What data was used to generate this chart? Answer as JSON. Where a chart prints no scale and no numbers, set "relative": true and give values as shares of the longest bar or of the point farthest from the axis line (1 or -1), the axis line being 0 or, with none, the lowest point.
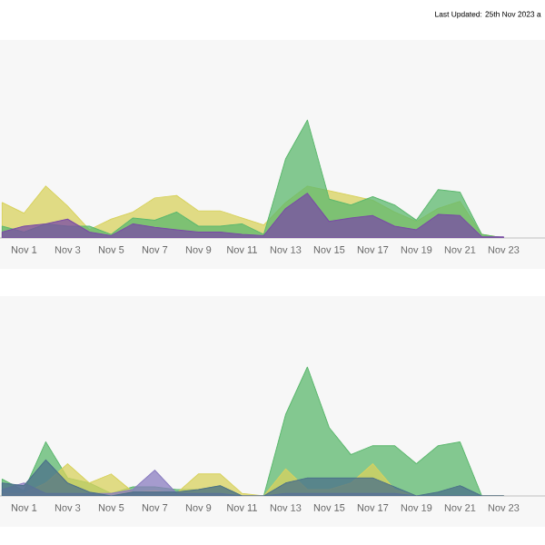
{
  "chart_data": [
    {
      "type": "area",
      "relative": true,
      "annotations": [
        "Last Updated: 25th Nov 2023 a"
      ],
      "categories": [
        null,
        "Nov 1",
        null,
        "Nov 3",
        null,
        "Nov 5",
        null,
        "Nov 7",
        null,
        "Nov 9",
        null,
        "Nov 11",
        null,
        "Nov 13",
        null,
        "Nov 15",
        null,
        "Nov 17",
        null,
        "Nov 19",
        null,
        "Nov 21",
        null,
        "Nov 23"
      ],
      "series": [
        {
          "color": "#d8d25e",
          "values": [
            0.3,
            0.21,
            0.44,
            0.27,
            0.07,
            0.16,
            0.22,
            0.34,
            0.36,
            0.23,
            0.23,
            0.17,
            0.11,
            0.3,
            0.44,
            0.4,
            0.36,
            0.32,
            0.22,
            0.14,
            0.25,
            0.31,
            0.03,
            0
          ]
        },
        {
          "color": "#5cb86e",
          "values": [
            0.1,
            0.05,
            0.12,
            0.1,
            0.1,
            0.03,
            0.17,
            0.15,
            0.22,
            0.1,
            0.1,
            0.12,
            0.03,
            0.67,
            1.0,
            0.33,
            0.28,
            0.35,
            0.28,
            0.15,
            0.41,
            0.39,
            0.03,
            0
          ]
        },
        {
          "color": "#7a4aa6",
          "values": [
            0.05,
            0.1,
            0.12,
            0.16,
            0.05,
            0.02,
            0.12,
            0.09,
            0.07,
            0.05,
            0.05,
            0.03,
            0.02,
            0.25,
            0.38,
            0.14,
            0.17,
            0.19,
            0.1,
            0.07,
            0.2,
            0.19,
            0.01,
            0.01
          ]
        }
      ]
    },
    {
      "type": "area",
      "relative": true,
      "categories": [
        null,
        "Nov 1",
        null,
        "Nov 3",
        null,
        "Nov 5",
        null,
        "Nov 7",
        null,
        "Nov 9",
        null,
        "Nov 11",
        null,
        "Nov 13",
        null,
        "Nov 15",
        null,
        "Nov 17",
        null,
        "Nov 19",
        null,
        "Nov 21",
        null,
        "Nov 23"
      ],
      "series": [
        {
          "color": "#5cb86e",
          "values": [
            0.13,
            0.04,
            0.42,
            0.14,
            0.1,
            0.02,
            0.07,
            0.07,
            0.05,
            0.05,
            0.08,
            0,
            0,
            0.63,
            1.0,
            0.53,
            0.32,
            0.39,
            0.39,
            0.25,
            0.39,
            0.42,
            0,
            0
          ]
        },
        {
          "color": "#d8d25e",
          "values": [
            0.02,
            0.02,
            0.1,
            0.25,
            0.1,
            0.17,
            0.03,
            0.04,
            0.02,
            0.17,
            0.17,
            0.02,
            0,
            0.21,
            0.05,
            0.05,
            0.1,
            0.25,
            0.05,
            0,
            0,
            0,
            0,
            0
          ]
        },
        {
          "color": "#8a7cc0",
          "values": [
            0.05,
            0.1,
            0.02,
            0.02,
            0.02,
            0.02,
            0.05,
            0.2,
            0.02,
            0.02,
            0.02,
            0,
            0,
            0.02,
            0.02,
            0.02,
            0.02,
            0.02,
            0.02,
            0,
            0,
            0,
            0,
            0
          ]
        },
        {
          "color": "#4a6f8a",
          "values": [
            0.1,
            0.08,
            0.28,
            0.1,
            0.03,
            0,
            0.03,
            0.03,
            0.03,
            0.05,
            0.08,
            0,
            0,
            0.1,
            0.14,
            0.14,
            0.14,
            0.14,
            0.07,
            0,
            0.03,
            0.08,
            0,
            0
          ]
        }
      ]
    }
  ]
}
